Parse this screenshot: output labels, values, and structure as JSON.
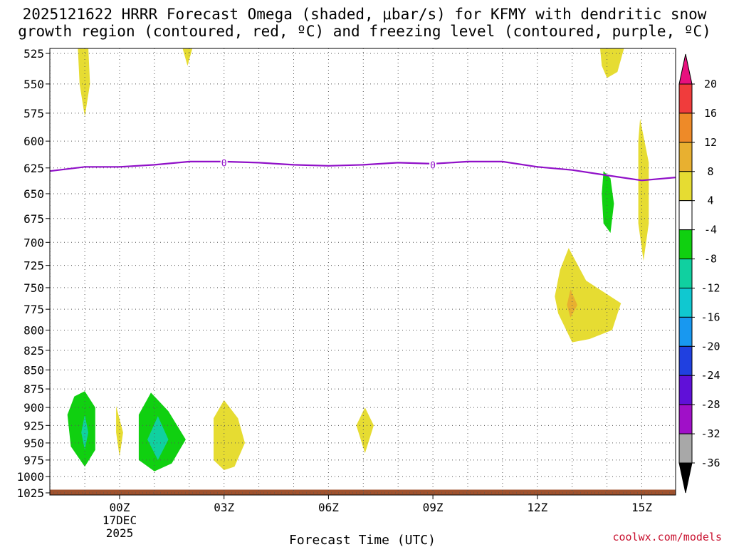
{
  "title": {
    "line1": "2025121622 HRRR Forecast Omega (shaded, μbar/s) for KFMY with dendritic snow",
    "line2": "growth region (contoured, red, ºC) and freezing level (contoured, purple, ºC)"
  },
  "credit": "coolwx.com/models",
  "chart_data": {
    "type": "time-height cross section (filled contours)",
    "xlabel": "Forecast Time (UTC)",
    "ylabel": "",
    "x_ticks": [
      {
        "hour": 0,
        "label": "00Z",
        "sub1": "17DEC",
        "sub2": "2025"
      },
      {
        "hour": 3,
        "label": "03Z"
      },
      {
        "hour": 6,
        "label": "06Z"
      },
      {
        "hour": 9,
        "label": "09Z"
      },
      {
        "hour": 12,
        "label": "12Z"
      },
      {
        "hour": 15,
        "label": "15Z"
      }
    ],
    "xlim_hours": [
      -2,
      16
    ],
    "y_ticks": [
      525,
      550,
      575,
      600,
      625,
      650,
      675,
      700,
      725,
      750,
      775,
      800,
      825,
      850,
      875,
      900,
      925,
      950,
      975,
      1000,
      1025
    ],
    "ylim_hpa": [
      1025,
      520
    ],
    "colorbar": {
      "labels": [
        "20",
        "16",
        "12",
        "8",
        "4",
        "-4",
        "-8",
        "-12",
        "-16",
        "-20",
        "-24",
        "-28",
        "-32",
        "-36"
      ],
      "bands": [
        {
          "range": "16 to 20",
          "color": "#f03c3c"
        },
        {
          "range": "12 to 16",
          "color": "#ee8a28"
        },
        {
          "range": "8 to 12",
          "color": "#e8b030"
        },
        {
          "range": "4 to 8",
          "color": "#e6dc32"
        },
        {
          "range": "-4 to 4",
          "color": "#ffffff"
        },
        {
          "range": "-8 to -4",
          "color": "#10d010"
        },
        {
          "range": "-12 to -8",
          "color": "#10d0a0"
        },
        {
          "range": "-16 to -12",
          "color": "#10c8d0"
        },
        {
          "range": "-20 to -16",
          "color": "#1898f0"
        },
        {
          "range": "-24 to -20",
          "color": "#2040e0"
        },
        {
          "range": "-28 to -24",
          "color": "#6010d8"
        },
        {
          "range": "-32 to -28",
          "color": "#a010c8"
        },
        {
          "range": "-36 to -32",
          "color": "#a8a8a8"
        }
      ],
      "over_color": "#e8107e",
      "under_color": "#000000"
    },
    "freezing_level": {
      "label": "0",
      "color": "#9010c8",
      "points": [
        [
          -2,
          628
        ],
        [
          -1,
          624
        ],
        [
          0,
          624
        ],
        [
          1,
          622
        ],
        [
          2,
          619
        ],
        [
          3,
          619
        ],
        [
          4,
          620
        ],
        [
          5,
          622
        ],
        [
          6,
          623
        ],
        [
          7,
          622
        ],
        [
          8,
          620
        ],
        [
          9,
          621
        ],
        [
          10,
          619
        ],
        [
          11,
          619
        ],
        [
          12,
          624
        ],
        [
          13,
          627
        ],
        [
          14,
          632
        ],
        [
          15,
          637
        ],
        [
          16,
          634
        ]
      ],
      "label_positions": [
        [
          3,
          620
        ],
        [
          9,
          622
        ]
      ]
    },
    "omega_regions": [
      {
        "name": "yellow-1",
        "color": "#e6dc32",
        "points": [
          [
            -1.2,
            520
          ],
          [
            -0.9,
            520
          ],
          [
            -0.85,
            550
          ],
          [
            -1.0,
            578
          ],
          [
            -1.15,
            550
          ]
        ]
      },
      {
        "name": "yellow-2",
        "color": "#e6dc32",
        "points": [
          [
            1.8,
            520
          ],
          [
            2.1,
            520
          ],
          [
            1.95,
            535
          ]
        ]
      },
      {
        "name": "yellow-3",
        "color": "#e6dc32",
        "points": [
          [
            13.8,
            520
          ],
          [
            14.5,
            520
          ],
          [
            14.3,
            540
          ],
          [
            14.0,
            545
          ],
          [
            13.85,
            535
          ]
        ]
      },
      {
        "name": "yellow-4",
        "color": "#e6dc32",
        "points": [
          [
            14.95,
            580
          ],
          [
            15.2,
            620
          ],
          [
            15.2,
            680
          ],
          [
            15.05,
            720
          ],
          [
            14.9,
            680
          ],
          [
            14.9,
            600
          ]
        ]
      },
      {
        "name": "green-1",
        "color": "#10d010",
        "points": [
          [
            13.9,
            628
          ],
          [
            14.1,
            635
          ],
          [
            14.2,
            660
          ],
          [
            14.1,
            690
          ],
          [
            13.9,
            680
          ],
          [
            13.85,
            650
          ]
        ]
      },
      {
        "name": "yellow-5",
        "color": "#e6dc32",
        "points": [
          [
            12.9,
            706
          ],
          [
            13.4,
            742
          ],
          [
            14.4,
            768
          ],
          [
            14.15,
            800
          ],
          [
            13.5,
            811
          ],
          [
            13.0,
            815
          ],
          [
            12.6,
            780
          ],
          [
            12.5,
            760
          ],
          [
            12.65,
            730
          ]
        ]
      },
      {
        "name": "orange-1",
        "color": "#e8b030",
        "points": [
          [
            12.95,
            752
          ],
          [
            13.15,
            770
          ],
          [
            12.95,
            785
          ],
          [
            12.85,
            770
          ]
        ]
      },
      {
        "name": "yellow-6",
        "color": "#e6dc32",
        "points": [
          [
            -0.1,
            898
          ],
          [
            0.1,
            935
          ],
          [
            0.0,
            970
          ],
          [
            -0.1,
            935
          ]
        ]
      },
      {
        "name": "yellow-7",
        "color": "#e6dc32",
        "points": [
          [
            3.0,
            890
          ],
          [
            3.4,
            915
          ],
          [
            3.6,
            950
          ],
          [
            3.3,
            985
          ],
          [
            3.0,
            990
          ],
          [
            2.7,
            975
          ],
          [
            2.7,
            915
          ]
        ]
      },
      {
        "name": "yellow-8",
        "color": "#e6dc32",
        "points": [
          [
            7.05,
            900
          ],
          [
            7.3,
            925
          ],
          [
            7.05,
            965
          ],
          [
            6.8,
            925
          ]
        ]
      },
      {
        "name": "green-2",
        "color": "#10d010",
        "points": [
          [
            -1.0,
            878
          ],
          [
            -0.7,
            900
          ],
          [
            -0.7,
            960
          ],
          [
            -1.0,
            985
          ],
          [
            -1.4,
            955
          ],
          [
            -1.5,
            910
          ],
          [
            -1.3,
            885
          ]
        ]
      },
      {
        "name": "teal-1",
        "color": "#10d0a0",
        "points": [
          [
            -1.0,
            910
          ],
          [
            -0.9,
            935
          ],
          [
            -1.0,
            960
          ],
          [
            -1.1,
            935
          ]
        ]
      },
      {
        "name": "green-3",
        "color": "#10d010",
        "points": [
          [
            0.9,
            880
          ],
          [
            1.4,
            905
          ],
          [
            1.9,
            945
          ],
          [
            1.5,
            980
          ],
          [
            1.0,
            992
          ],
          [
            0.55,
            975
          ],
          [
            0.55,
            910
          ]
        ]
      },
      {
        "name": "teal-2",
        "color": "#10d0a0",
        "points": [
          [
            1.1,
            912
          ],
          [
            1.4,
            945
          ],
          [
            1.1,
            975
          ],
          [
            0.8,
            945
          ]
        ]
      }
    ],
    "ground": {
      "color": "#a0522d",
      "level_hpa": 1020
    }
  }
}
